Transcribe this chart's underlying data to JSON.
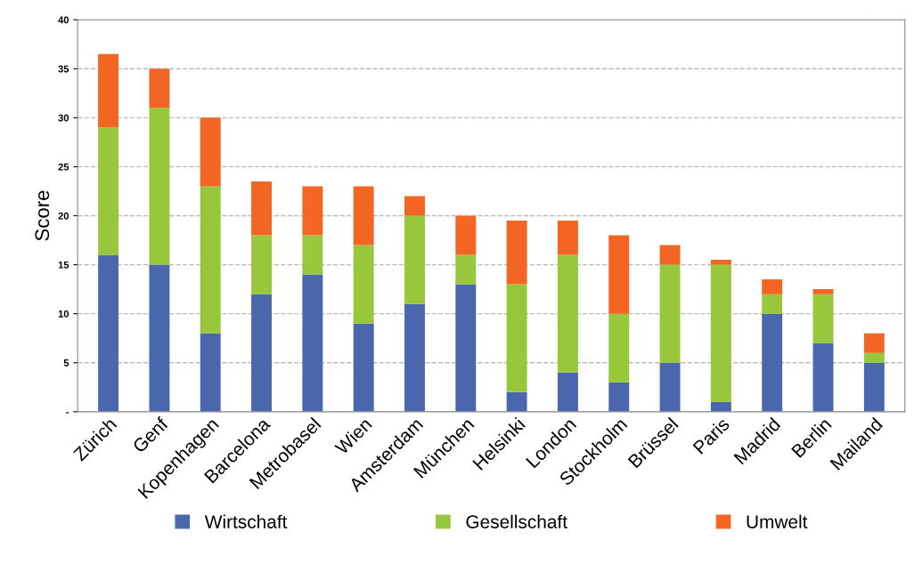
{
  "chart_data": {
    "type": "bar",
    "stacked": true,
    "ylabel": "Score",
    "categories": [
      "Zürich",
      "Genf",
      "Kopenhagen",
      "Barcelona",
      "Metrobasel",
      "Wien",
      "Amsterdam",
      "München",
      "Helsinki",
      "London",
      "Stockholm",
      "Brüssel",
      "Paris",
      "Madrid",
      "Berlin",
      "Mailand"
    ],
    "series": [
      {
        "name": "Wirtschaft",
        "color": "#4a67ae",
        "values": [
          16,
          15,
          8,
          12,
          14,
          9,
          11,
          13,
          2,
          4,
          3,
          5,
          1,
          10,
          7,
          5
        ]
      },
      {
        "name": "Gesellschaft",
        "color": "#98c73b",
        "values": [
          13,
          16,
          15,
          6,
          4,
          8,
          9,
          3,
          11,
          12,
          7,
          10,
          14,
          2,
          5,
          1
        ]
      },
      {
        "name": "Umwelt",
        "color": "#f26522",
        "values": [
          7.5,
          4,
          7,
          5.5,
          5,
          6,
          2,
          4,
          6.5,
          3.5,
          8,
          2,
          0.5,
          1.5,
          0.5,
          2
        ]
      }
    ],
    "ylim": [
      0,
      40
    ],
    "yticks": [
      {
        "value": 0,
        "label": "-"
      },
      5,
      10,
      15,
      20,
      25,
      30,
      35,
      40
    ],
    "grid": "y",
    "legend": "bottom"
  }
}
